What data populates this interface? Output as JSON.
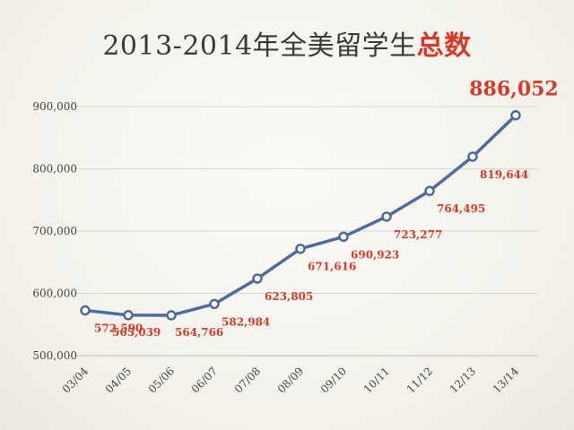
{
  "title": {
    "main": "2013-2014年全美留学生",
    "accent": "总数"
  },
  "colors": {
    "line": "#4f6b9c",
    "label": "#d63a2a",
    "axis_text": "#444444",
    "grid": "#d8d6cf",
    "axis": "#bdbbb3"
  },
  "chart_data": {
    "type": "line",
    "categories": [
      "03/04",
      "04/05",
      "05/06",
      "06/07",
      "07/08",
      "08/09",
      "09/10",
      "10/11",
      "11/12",
      "12/13",
      "13/14"
    ],
    "values": [
      572590,
      565039,
      564766,
      582984,
      623805,
      671616,
      690923,
      723277,
      764495,
      819644,
      886052
    ],
    "data_labels": [
      "572,590",
      "565,039",
      "564,766",
      "582,984",
      "623,805",
      "671,616",
      "690,923",
      "723,277",
      "764,495",
      "819,644",
      "886,052"
    ],
    "ylim": [
      500000,
      900000
    ],
    "yticks": [
      500000,
      600000,
      700000,
      800000,
      900000
    ],
    "ytick_labels": [
      "500,000",
      "600,000",
      "700,000",
      "800,000",
      "900,000"
    ],
    "grid": true,
    "title": "2013-2014年全美留学生总数"
  }
}
